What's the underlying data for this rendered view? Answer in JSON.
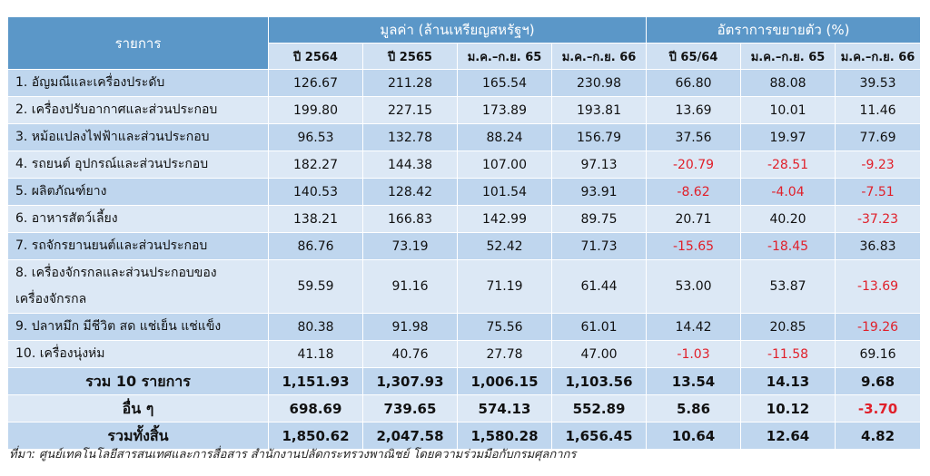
{
  "header": {
    "item_col": "รายการ",
    "value_group": "มูลค่า (ล้านเหรียญสหรัฐฯ)",
    "growth_group": "อัตราการขยายตัว (%)"
  },
  "subheaders": [
    "ปี 2564",
    "ปี 2565",
    "ม.ค.–ก.ย. 65",
    "ม.ค.–ก.ย. 66",
    "ปี 65/64",
    "ม.ค.–ก.ย. 65",
    "ม.ค.–ก.ย. 66"
  ],
  "rows": [
    {
      "label": "1. อัญมณีและเครื่องประดับ",
      "values": [
        "126.67",
        "211.28",
        "165.54",
        "230.98",
        "66.80",
        "88.08",
        "39.53"
      ]
    },
    {
      "label": "2. เครื่องปรับอากาศและส่วนประกอบ",
      "values": [
        "199.80",
        "227.15",
        "173.89",
        "193.81",
        "13.69",
        "10.01",
        "11.46"
      ]
    },
    {
      "label": "3. หม้อแปลงไฟฟ้าและส่วนประกอบ",
      "values": [
        "96.53",
        "132.78",
        "88.24",
        "156.79",
        "37.56",
        "19.97",
        "77.69"
      ]
    },
    {
      "label": "4. รถยนต์ อุปกรณ์และส่วนประกอบ",
      "values": [
        "182.27",
        "144.38",
        "107.00",
        "97.13",
        "-20.79",
        "-28.51",
        "-9.23"
      ]
    },
    {
      "label": "5. ผลิตภัณฑ์ยาง",
      "values": [
        "140.53",
        "128.42",
        "101.54",
        "93.91",
        "-8.62",
        "-4.04",
        "-7.51"
      ]
    },
    {
      "label": "6. อาหารสัตว์เลี้ยง",
      "values": [
        "138.21",
        "166.83",
        "142.99",
        "89.75",
        "20.71",
        "40.20",
        "-37.23"
      ]
    },
    {
      "label": "7. รถจักรยานยนต์และส่วนประกอบ",
      "values": [
        "86.76",
        "73.19",
        "52.42",
        "71.73",
        "-15.65",
        "-18.45",
        "36.83"
      ]
    },
    {
      "label": "8. เครื่องจักรกลและส่วนประกอบของเครื่องจักรกล",
      "values": [
        "59.59",
        "91.16",
        "71.19",
        "61.44",
        "53.00",
        "53.87",
        "-13.69"
      ]
    },
    {
      "label": "9. ปลาหมึก มีชีวิต สด แช่เย็น แช่แข็ง",
      "values": [
        "80.38",
        "91.98",
        "75.56",
        "61.01",
        "14.42",
        "20.85",
        "-19.26"
      ]
    },
    {
      "label": "10. เครื่องนุ่งห่ม",
      "values": [
        "41.18",
        "40.76",
        "27.78",
        "47.00",
        "-1.03",
        "-11.58",
        "69.16"
      ]
    }
  ],
  "summary": [
    {
      "label": "รวม 10 รายการ",
      "values": [
        "1,151.93",
        "1,307.93",
        "1,006.15",
        "1,103.56",
        "13.54",
        "14.13",
        "9.68"
      ]
    },
    {
      "label": "อื่น ๆ",
      "values": [
        "698.69",
        "739.65",
        "574.13",
        "552.89",
        "5.86",
        "10.12",
        "-3.70"
      ]
    },
    {
      "label": "รวมทั้งสิ้น",
      "values": [
        "1,850.62",
        "2,047.58",
        "1,580.28",
        "1,656.45",
        "10.64",
        "12.64",
        "4.82"
      ]
    }
  ],
  "source": "ที่มา: ศูนย์เทคโนโลยีสารสนเทศและการสื่อสาร สำนักงานปลัดกระทรวงพาณิชย์ โดยความร่วมมือกับกรมศุลกากร",
  "colors": {
    "header_bg": "#5b97c8",
    "row_odd": "#bfd6ee",
    "row_even": "#dce8f5",
    "negative": "#e0202a"
  }
}
